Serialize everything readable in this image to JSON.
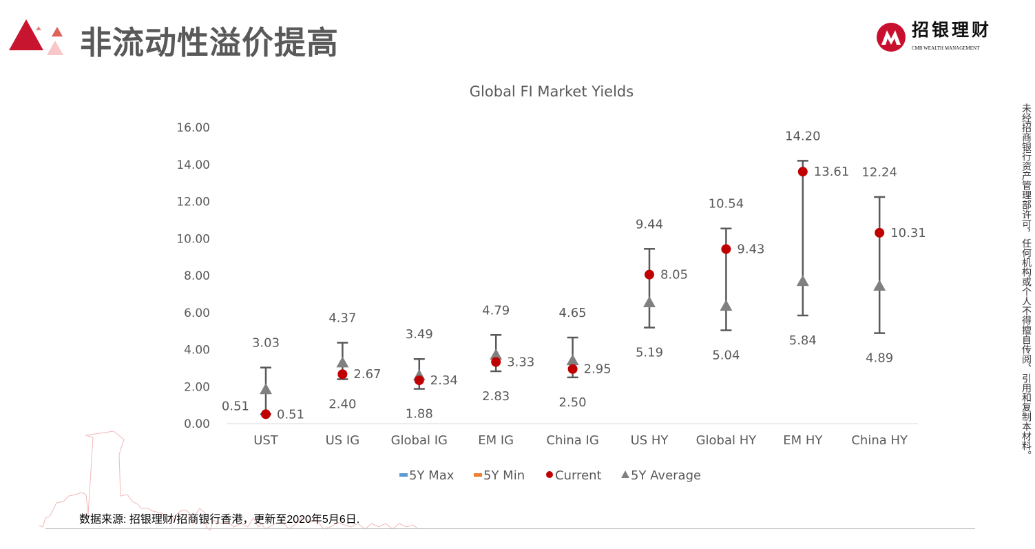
{
  "header": {
    "title": "非流动性溢价提高"
  },
  "logo": {
    "name_cn": "招银理财",
    "name_en": "CMB WEALTH MANAGEMENT"
  },
  "disclaimer": "未经招商银行资产管理部许可，任何机构或个人不得擅自传阅、引用和复制本材料。",
  "source_note": "数据来源: 招银理财/招商银行香港，更新至2020年5月6日.",
  "colors": {
    "accent": "#c8102e",
    "current": "#c00000",
    "average": "#808080",
    "bar": "#595959",
    "max_legend": "#5b9bd5",
    "min_legend": "#ed7d31"
  },
  "chart_data": {
    "type": "scatter",
    "title": "Global FI Market Yields",
    "categories": [
      "UST",
      "US IG",
      "Global IG",
      "EM IG",
      "China IG",
      "US HY",
      "Global HY",
      "EM HY",
      "China HY"
    ],
    "series": [
      {
        "name": "5Y Max",
        "values": [
          3.03,
          4.37,
          3.49,
          4.79,
          4.65,
          9.44,
          10.54,
          14.2,
          12.24
        ]
      },
      {
        "name": "5Y Min",
        "values": [
          0.51,
          2.4,
          1.88,
          2.83,
          2.5,
          5.19,
          5.04,
          5.84,
          4.89
        ]
      },
      {
        "name": "Current",
        "values": [
          0.51,
          2.67,
          2.34,
          3.33,
          2.95,
          8.05,
          9.43,
          13.61,
          10.31
        ]
      },
      {
        "name": "5Y Average",
        "values": [
          1.85,
          3.3,
          2.6,
          3.72,
          3.42,
          6.55,
          6.36,
          7.7,
          7.44
        ]
      }
    ],
    "yticks": [
      "0.00",
      "2.00",
      "4.00",
      "6.00",
      "8.00",
      "10.00",
      "12.00",
      "14.00",
      "16.00"
    ],
    "ylim": [
      0,
      16
    ],
    "legend": [
      "5Y Max",
      "5Y Min",
      "Current",
      "5Y Average"
    ],
    "legend_position": "bottom",
    "grid": false
  }
}
